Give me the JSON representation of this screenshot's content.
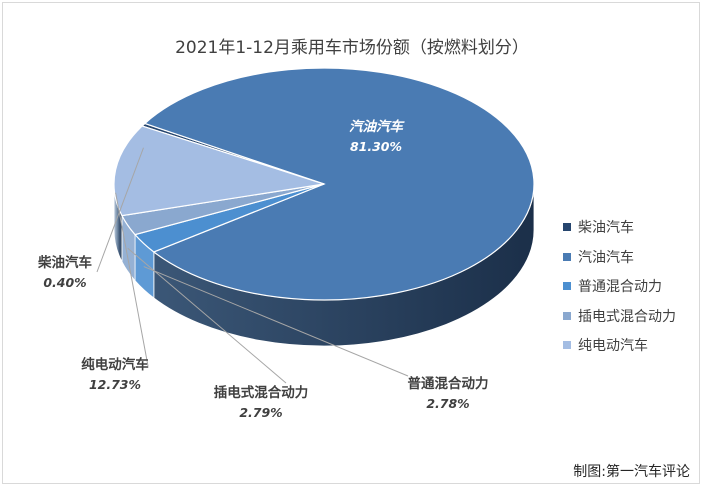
{
  "chart_data": {
    "type": "pie",
    "title": "2021年1-12月乘用车市场份额（按燃料划分）",
    "slices": [
      {
        "name": "柴油汽车",
        "label": "柴油汽车",
        "value": 0.4,
        "value_label": "0.40%",
        "color": "#26456e"
      },
      {
        "name": "汽油汽车",
        "label": "汽油汽车",
        "value": 81.3,
        "value_label": "81.30%",
        "color": "#4a7bb3"
      },
      {
        "name": "普通混合动力",
        "label": "普通混合动力",
        "value": 2.78,
        "value_label": "2.78%",
        "color": "#4c8fd0"
      },
      {
        "name": "插电式混合动力",
        "label": "插电式混合动力",
        "value": 2.79,
        "value_label": "2.79%",
        "color": "#8aa8cf"
      },
      {
        "name": "纯电动汽车",
        "label": "纯电动汽车",
        "value": 12.73,
        "value_label": "12.73%",
        "color": "#a4bde3"
      }
    ],
    "legend_position": "right"
  },
  "credit": "制图:第一汽车评论"
}
